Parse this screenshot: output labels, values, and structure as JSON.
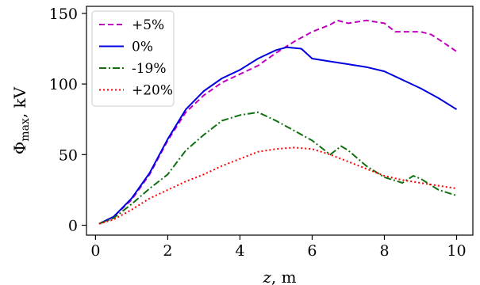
{
  "chart_data": {
    "type": "line",
    "xlabel_var": "z",
    "xlabel_unit": ", m",
    "ylabel_sym": "Φ",
    "ylabel_sub": "max",
    "ylabel_unit": ", kV",
    "xlim": [
      -0.25,
      10.45
    ],
    "ylim": [
      -7,
      155
    ],
    "xticks": [
      0,
      2,
      4,
      6,
      8,
      10
    ],
    "yticks": [
      0,
      50,
      100,
      150
    ],
    "grid": false,
    "legend_placement": "top-left",
    "series": [
      {
        "name": "+5%",
        "color": "#c000c0",
        "dash": "7,4",
        "x": [
          0.1,
          0.5,
          1.0,
          1.5,
          2.0,
          2.5,
          3.0,
          3.5,
          4.0,
          4.5,
          5.0,
          5.5,
          6.0,
          6.5,
          6.7,
          7.0,
          7.5,
          8.0,
          8.3,
          8.7,
          9.0,
          9.3,
          9.6,
          10.0
        ],
        "y": [
          1,
          6,
          18,
          36,
          60,
          80,
          92,
          101,
          107,
          113,
          122,
          130,
          137,
          142,
          145,
          143,
          145,
          143,
          137,
          137,
          137,
          135,
          130,
          123
        ]
      },
      {
        "name": "0%",
        "color": "#0000e0",
        "dash": "",
        "x": [
          0.1,
          0.5,
          1.0,
          1.5,
          2.0,
          2.5,
          3.0,
          3.5,
          4.0,
          4.5,
          5.0,
          5.3,
          5.7,
          6.0,
          6.5,
          7.0,
          7.5,
          8.0,
          8.5,
          9.0,
          9.5,
          10.0
        ],
        "y": [
          1,
          6,
          19,
          37,
          61,
          82,
          95,
          104,
          110,
          118,
          124,
          126,
          125,
          118,
          116,
          114,
          112,
          109,
          103,
          97,
          90,
          82
        ]
      },
      {
        "name": "-19%",
        "color": "#107010",
        "dash": "9,3,2,3",
        "x": [
          0.1,
          0.5,
          1.0,
          1.5,
          2.0,
          2.5,
          3.0,
          3.5,
          4.0,
          4.5,
          5.0,
          5.5,
          6.0,
          6.5,
          6.8,
          7.0,
          7.5,
          8.0,
          8.5,
          8.8,
          9.0,
          9.5,
          10.0
        ],
        "y": [
          1,
          5,
          15,
          26,
          36,
          53,
          64,
          74,
          78,
          80,
          74,
          67,
          60,
          50,
          56,
          53,
          42,
          34,
          30,
          35,
          33,
          25,
          21
        ]
      },
      {
        "name": "+20%",
        "color": "#ff0000",
        "dash": "2,3",
        "x": [
          0.1,
          0.5,
          1.0,
          1.5,
          2.0,
          2.5,
          3.0,
          3.5,
          4.0,
          4.5,
          5.0,
          5.5,
          6.0,
          6.5,
          7.0,
          7.5,
          8.0,
          8.5,
          9.0,
          9.5,
          10.0
        ],
        "y": [
          1,
          4,
          11,
          19,
          25,
          31,
          36,
          42,
          47,
          52,
          54,
          55,
          54,
          50,
          45,
          40,
          35,
          32,
          30,
          28,
          26
        ]
      }
    ]
  }
}
